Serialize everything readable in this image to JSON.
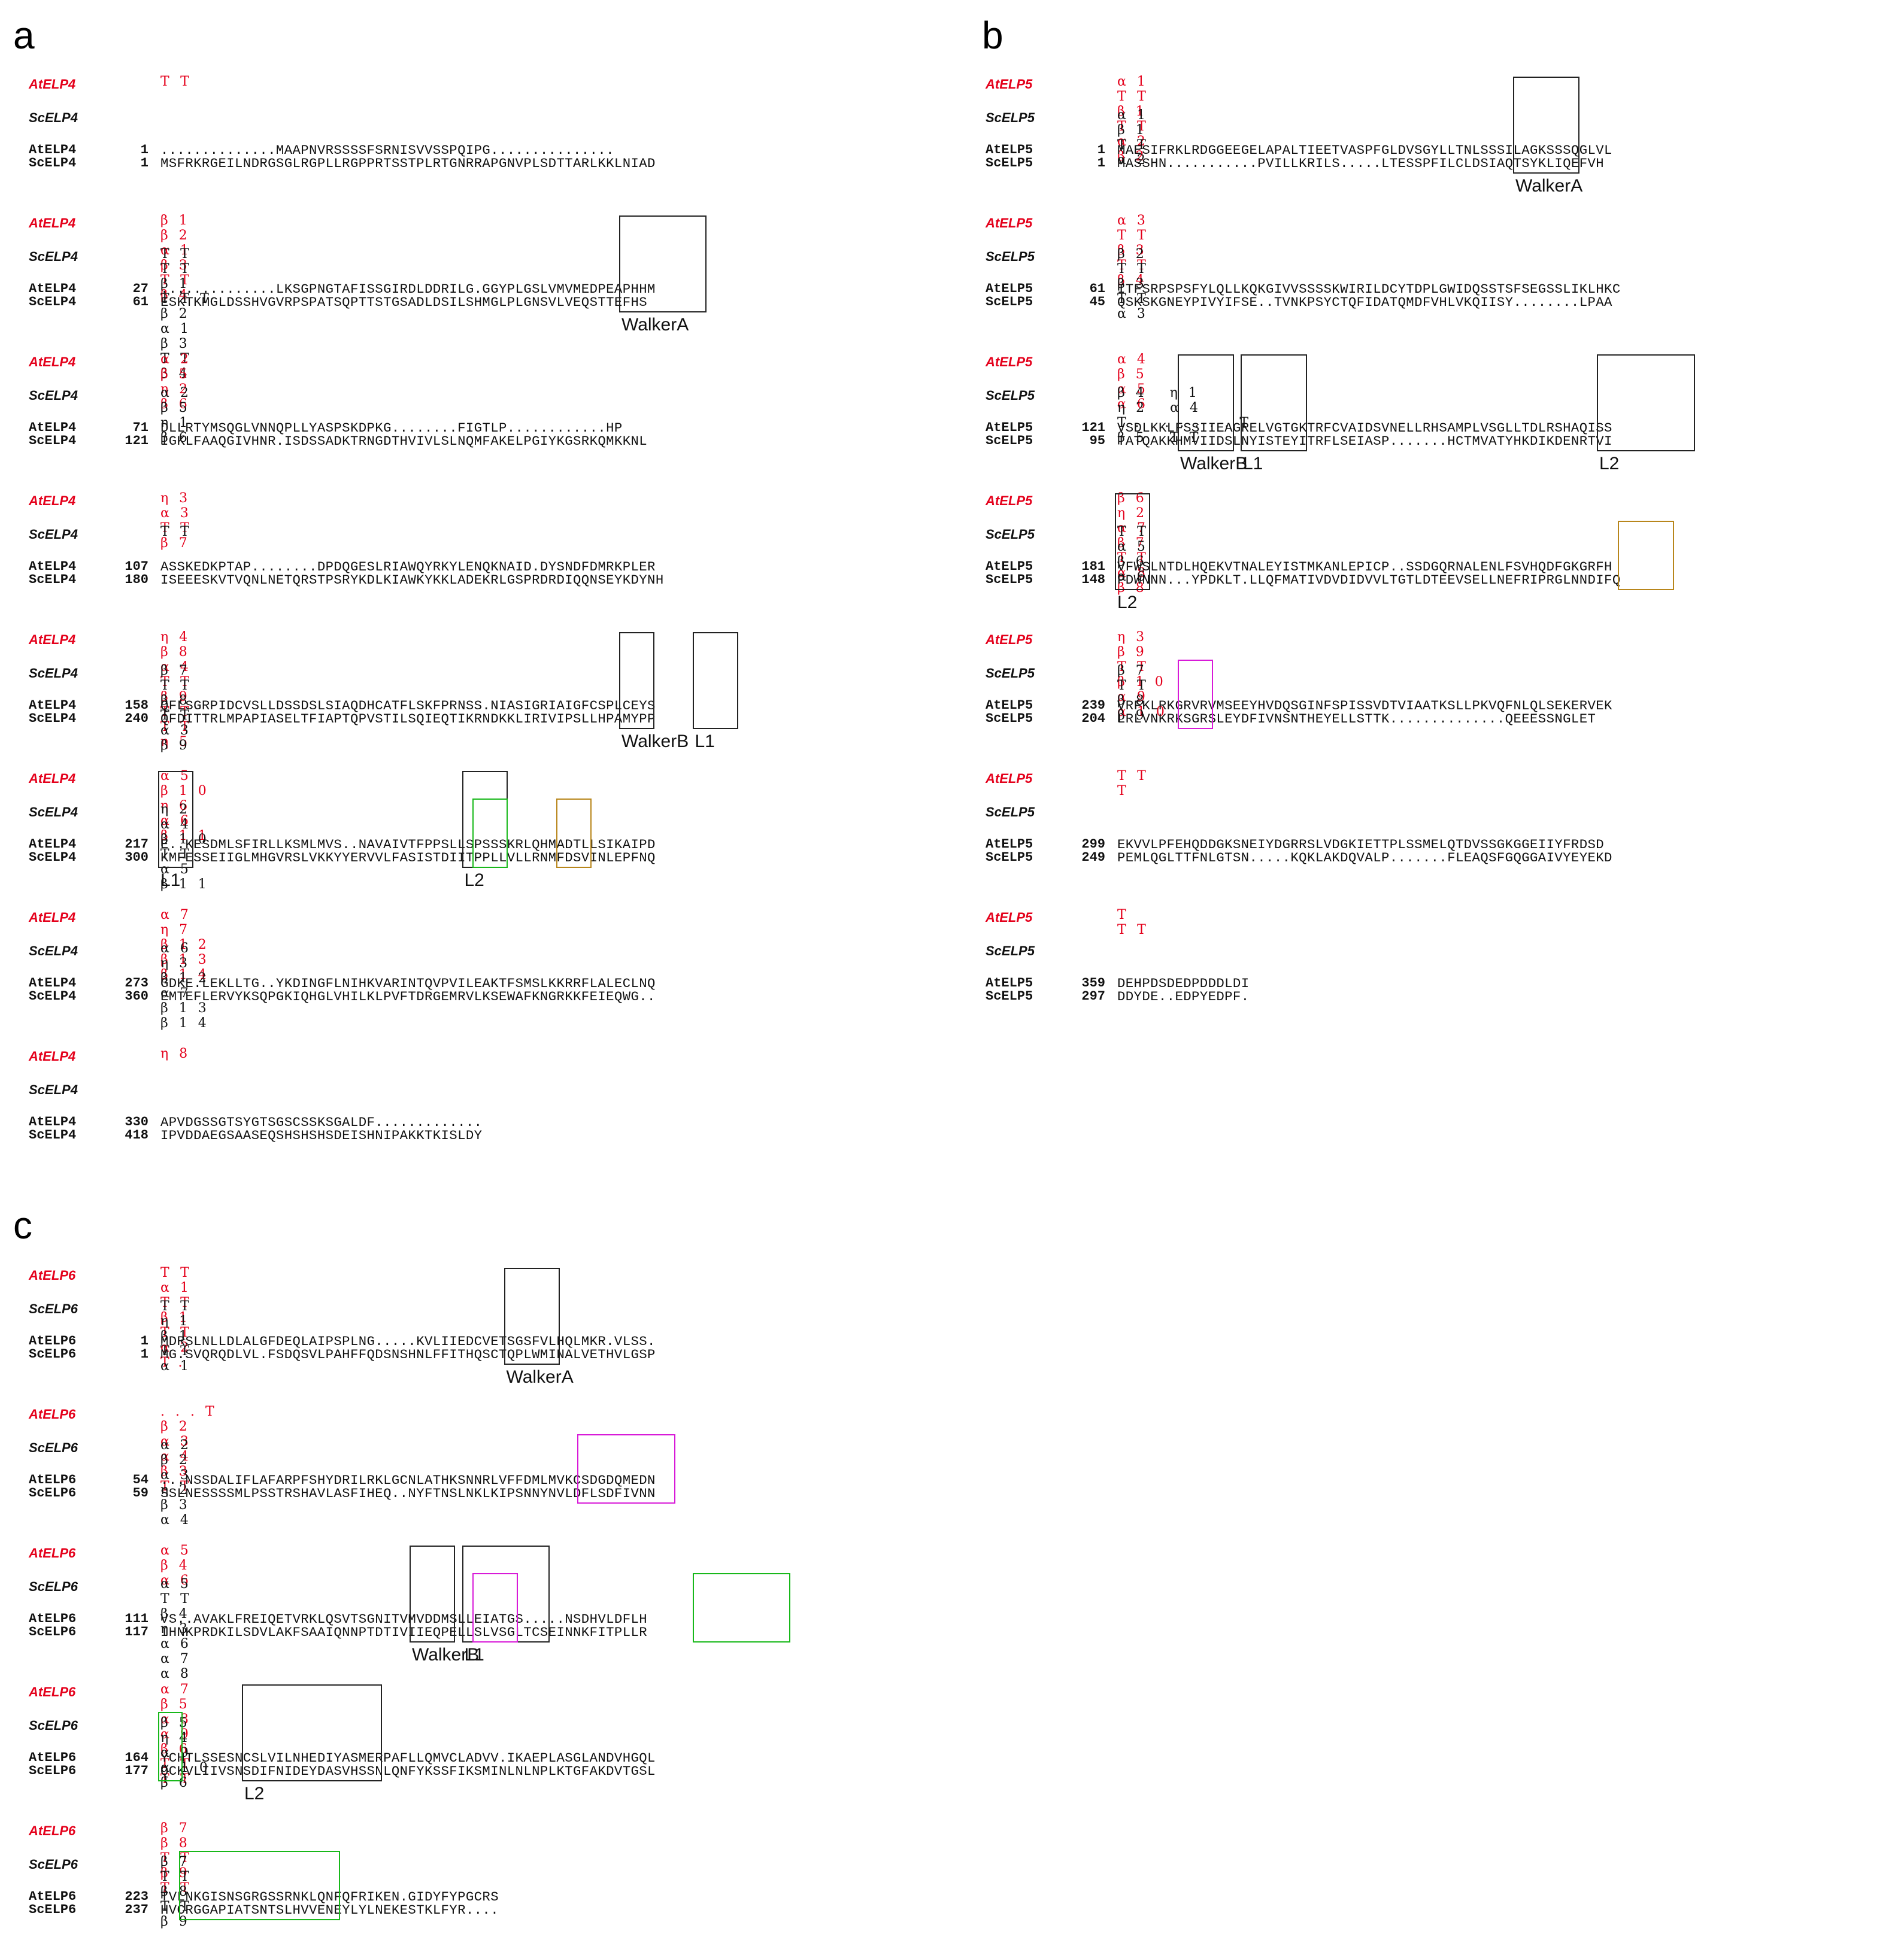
{
  "panels": {
    "a": {
      "letter": "a",
      "blocks": [
        {
          "at_label": "AtELP4",
          "sc_label": "ScELP4",
          "at_ss": "TT",
          "sc_ss": "",
          "at_name": "AtELP4",
          "sc_name": "ScELP4",
          "at_num": "1",
          "sc_num": "1",
          "at_seq": "..............MAAPNVRSSSSFSRNISVVSSPQIPG...............",
          "sc_seq": "MSFRKRGEILNDRGSGLRGPLLRGPPRTSSTPLRTGNRRAPGNVPLSDTTARLKKLNIAD"
        },
        {
          "at_label": "AtELP4",
          "sc_label": "ScELP4",
          "at_ss": "β1 β2 α1 β3 TT β4",
          "sc_ss": "TT TT β1 TTT β2 α1 β3 TT β4",
          "at_name": "AtELP4",
          "sc_name": "ScELP4",
          "at_num": "27",
          "sc_num": "61",
          "at_seq": "..............LKSGPNGTAFISSGIRDLDDRILG.GGYPLGSLVMVMEDPEAPHHM",
          "sc_seq": "ESKTKMGLDSSHVGVRPSPATSQPTTSTGSADLDSILSHMGLPLGNSVLVEQSTTEFHS",
          "motif": "WalkerA"
        },
        {
          "at_label": "AtELP4",
          "sc_label": "ScELP4",
          "at_ss": "α2 β5 η2 β6",
          "sc_ss": "α2 β5 η1 β6",
          "at_name": "AtELP4",
          "sc_name": "ScELP4",
          "at_num": "71",
          "sc_num": "121",
          "at_seq": "DLLRTYMSQGLVNNQPLLYASPSKDPKG........FIGTLP............HP",
          "sc_seq": "IGKLFAAQGIVHNR.ISDSSADKTRNGDTHVIVLSLNQMFAKELPGIYKGSRKQMKKNL"
        },
        {
          "at_label": "AtELP4",
          "sc_label": "ScELP4",
          "at_ss": "η3 α3 TT β7",
          "sc_ss": "TT",
          "at_name": "AtELP4",
          "sc_name": "ScELP4",
          "at_num": "107",
          "sc_num": "180",
          "at_seq": "ASSKEDKPTAP........DPDQGESLRIAWQYRKYLENQKNAID.DYSNDFDMRKPLER",
          "sc_seq": "ISEEESKVTVQNLNETQRSTPSRYKDLKIAWKYKKLADEKRLGSPRDRDIQQNSEYKDYNH"
        },
        {
          "at_label": "AtELP4",
          "sc_label": "ScELP4",
          "at_ss": "η4 β8 α4 TT β9 TT TT η5",
          "sc_ss": "β7 TT β8 TT α3 β9",
          "at_name": "AtELP4",
          "sc_name": "ScELP4",
          "at_num": "158",
          "sc_num": "240",
          "at_seq": "QFLSGRPIDCVSLLDSSDSLSIAQDHCATFLSKFPRNSS.NIASIGRIAIGFCSPLCEYS",
          "sc_seq": "QFDITTRLMPAPIASELTFIAPTQPVSTILSQIEQTIKRNDKKLIRIVIPSLLHPAMYPP",
          "motif": "WalkerB",
          "motif2": "L1"
        },
        {
          "at_label": "AtELP4",
          "sc_label": "ScELP4",
          "at_ss": "α5 β10 η6 α6 β11",
          "sc_ss": "η2 α4 β10 TT α5 β11",
          "at_name": "AtELP4",
          "sc_name": "ScELP4",
          "at_num": "217",
          "sc_num": "300",
          "at_seq": "E..KESDMLSFIRLLKSMLMVS..NAVAIVTFPPSLLSPSSSKRLQHMADTLLSIKAIPD",
          "sc_seq": "KMFESSEIIGLMHGVRSLVKKYYERVVLFASISTDIITPPLLVLLRNMFDSVINLEPFNQ",
          "motif": "L1",
          "motif2": "L2"
        },
        {
          "at_label": "AtELP4",
          "sc_label": "ScELP4",
          "at_ss": "α7 η7 β12 β13 β14",
          "sc_ss": "α6 η3 β12 α7 β13 β14",
          "at_name": "AtELP4",
          "sc_name": "ScELP4",
          "at_num": "273",
          "sc_num": "360",
          "at_seq": "GDKE.LEKLLTG..YKDINGFLNIHKVARINTQVPVILEAKTFSMSLKKRRFLALECLNQ",
          "sc_seq": "EMTEFLERVYKSQPGKIQHGLVHILKLPVFTDRGEMRVLKSEWAFKNGRKKFEIEQWG.."
        },
        {
          "at_label": "AtELP4",
          "sc_label": "ScELP4",
          "at_ss": "η8",
          "sc_ss": "",
          "at_name": "AtELP4",
          "sc_name": "ScELP4",
          "at_num": "330",
          "sc_num": "418",
          "at_seq": "APVDGSSGTSYGTSGSCSSKSGALDF.............",
          "sc_seq": "IPVDDAEGSAASEQSHSHSHSDEISHNIPAKKTKISLDY"
        }
      ]
    },
    "b": {
      "letter": "b",
      "blocks": [
        {
          "at_label": "AtELP5",
          "sc_label": "ScELP5",
          "at_ss": "α1 TT β1 TT α2 β2",
          "sc_ss": "α1 β1 TT α2",
          "at_name": "AtELP5",
          "sc_name": "ScELP5",
          "at_num": "1",
          "sc_num": "1",
          "at_seq": "MAESIFRKLRDGGEEGELAPALTIEETVASPFGLDVSGYLLTNLSSSILAGKSSSQGLVL",
          "sc_seq": "MASSHN...........PVILLKRILS.....LTESSPFILCLDSIAQTSYKLIQEFVH",
          "motif": "WalkerA"
        },
        {
          "at_label": "AtELP5",
          "sc_label": "ScELP5",
          "at_ss": "α3 TT β3 TT β4",
          "sc_ss": "β2 TT β3 TT α3",
          "at_name": "AtELP5",
          "sc_name": "ScELP5",
          "at_num": "61",
          "sc_num": "45",
          "at_seq": "ITFSRPSPSFYLQLLKQKGIVVSSSSKWIRILDCYTDPLGWIDQSSTSFSEGSSLIKLHKC",
          "sc_seq": "QSKSKGNEYPIVYIFSE..TVNKPSYCTQFIDATQMDFVHLVKQIISY........LPAA"
        },
        {
          "at_label": "AtELP5",
          "sc_label": "ScELP5",
          "at_ss": "α4 β5 α5 α6",
          "sc_ss": "β4 η1 η2 α4 T.......T β5 TT",
          "at_name": "AtELP5",
          "sc_name": "ScELP5",
          "at_num": "121",
          "sc_num": "95",
          "at_seq": "VSDLKKLFSSIIEAGRELVGTGKTRFCVAIDSVNELLRHSAMPLVSGLLTDLRSHAQISS",
          "sc_seq": "TATQAKKHMVIIDSLNYISTEYITRFLSEIASP.......HCTMVATYHKDIKDENRTVI",
          "motif": "WalkerB",
          "motif2": "L1",
          "motif3": "L2"
        },
        {
          "at_label": "AtELP5",
          "sc_label": "ScELP5",
          "at_ss": "β6 η2 α7 β7 TT α8 β8",
          "sc_ss": "TT α5 β6 α6",
          "at_name": "AtELP5",
          "sc_name": "ScELP5",
          "at_num": "181",
          "sc_num": "148",
          "at_seq": "VFWSLNTDLHQEKVTNALEYISTMKANLEPICP..SSDGQRNALENLFSVHQDFGKGRFH",
          "sc_seq": "PDWNNN...YPDKLT.LLQFMATIVDVDIDVVLTGTLDTEEVSELLNEFRIPRGLNNDIFQ",
          "motif": "L2"
        },
        {
          "at_label": "AtELP5",
          "sc_label": "ScELP5",
          "at_ss": "η3 β9 TT β10 α9 α10",
          "sc_ss": "β7 TT β8 β9",
          "at_name": "AtELP5",
          "sc_name": "ScELP5",
          "at_num": "239",
          "sc_num": "204",
          "at_seq": "VRFKLRKGRVRVMSEEYHVDQSGINFSPISSVDTVIAATKSLLPKVQFNLQLSEKERVEK",
          "sc_seq": "LRLVNKRKSGRSLEYDFIVNSNTHEYELLSTTK..............QEEESSNGLET"
        },
        {
          "at_label": "AtELP5",
          "sc_label": "ScELP5",
          "at_ss": "TT T",
          "sc_ss": "",
          "at_name": "AtELP5",
          "sc_name": "ScELP5",
          "at_num": "299",
          "sc_num": "249",
          "at_seq": "EKVVLPFEHQDDGKSNEIYDGRRSLVDGKIETTPLSSMELQTDVSSGKGGEIIYFRDSD",
          "sc_seq": "PEMLQGLTTFNLGTSN.....KQKLAKDQVALP.......FLEAQSFGQGGAIVYEYEKD"
        },
        {
          "at_label": "AtELP5",
          "sc_label": "ScELP5",
          "at_ss": "T TT",
          "sc_ss": "",
          "at_name": "AtELP5",
          "sc_name": "ScELP5",
          "at_num": "359",
          "sc_num": "297",
          "at_seq": "DEHPDSDEDPDDDLDI",
          "sc_seq": "DDYDE..EDPYEDPF."
        }
      ]
    },
    "c": {
      "letter": "c",
      "blocks": [
        {
          "at_label": "AtELP6",
          "sc_label": "ScELP6",
          "at_ss": "TT α1 TT β1 TT α2 T.",
          "sc_ss": "TT η1 β1 TT α1",
          "at_name": "AtELP6",
          "sc_name": "ScELP6",
          "at_num": "1",
          "sc_num": "1",
          "at_seq": "MDRSLNLLDLALGFDEQLAIPSPLNG.....KVLIIEDCVETSGSFVLHQLMKR.VLSS.",
          "sc_seq": "MG.SVQRQDLVL.FSDQSVLPAHFFQDSNSHNLFFITHQSCTQPLWMINALVETHVLGSP",
          "motif": "WalkerA"
        },
        {
          "at_label": "AtELP6",
          "sc_label": "ScELP6",
          "at_ss": "...T β2 α3 α4 β3 TT",
          "sc_ss": "α2 β2 α3 η2 β3 α4",
          "at_name": "AtELP6",
          "sc_name": "ScELP6",
          "at_num": "54",
          "sc_num": "59",
          "at_seq": "...NSSDALIFLAFARPFSHYDRILRKLGCNLATHKSNNRLVFFDMLMVKCSDGDQMEDN",
          "sc_seq": "SSLNESSSSMLPSSTRSHAVLASFIHEQ..NYFTNSLNKLKIPSNNYNVLDFLSDFIVNN"
        },
        {
          "at_label": "AtELP6",
          "sc_label": "ScELP6",
          "at_ss": "α5 β4 α6",
          "sc_ss": "α5 TT β4 η3 α6 α7 α8",
          "at_name": "AtELP6",
          "sc_name": "ScELP6",
          "at_num": "111",
          "sc_num": "117",
          "at_seq": "VS..AVAKLFREIQETVRKLQSVTSGNITVMVDDMSLLEIATGS.....NSDHVLDFLH",
          "sc_seq": "IHNKPRDKILSDVLAKFSAAIQNNPTDTIVIIEQPELLSLVSGLTCSEINNKFITPLLR",
          "motif": "WalkerB",
          "motif2": "L1"
        },
        {
          "at_label": "AtELP6",
          "sc_label": "ScELP6",
          "at_ss": "α7 β5 α8 α9 β6 TT TT",
          "sc_ss": "β5 η4 α9 α10 β6",
          "at_name": "AtELP6",
          "sc_name": "ScELP6",
          "at_num": "164",
          "sc_num": "177",
          "at_seq": "YCHTLSSESNCSLVILNHEDIYASMERPAFLLQMVCLADVV.IKAEPLASGLANDVHGQL",
          "sc_seq": "QCKVLIIVSNSDIFNIDEYDASVHSSNLQNFYKSSFIKSMINLNLNPLKTGFAKDVTGSL",
          "motif": "L2"
        },
        {
          "at_label": "AtELP6",
          "sc_label": "ScELP6",
          "at_ss": "β7 β8 TT β9 TT",
          "sc_ss": "β7 TT β8 TT β9",
          "at_name": "AtELP6",
          "sc_name": "ScELP6",
          "at_num": "223",
          "sc_num": "237",
          "at_seq": "TVLNKGISNSGRGSSRNKLQNFQFRIKEN.GIDYFYPGCRS",
          "sc_seq": "HVCRGGAPIATSNTSLHVVENEYLYLNEKESTKLFYR...."
        }
      ]
    }
  }
}
